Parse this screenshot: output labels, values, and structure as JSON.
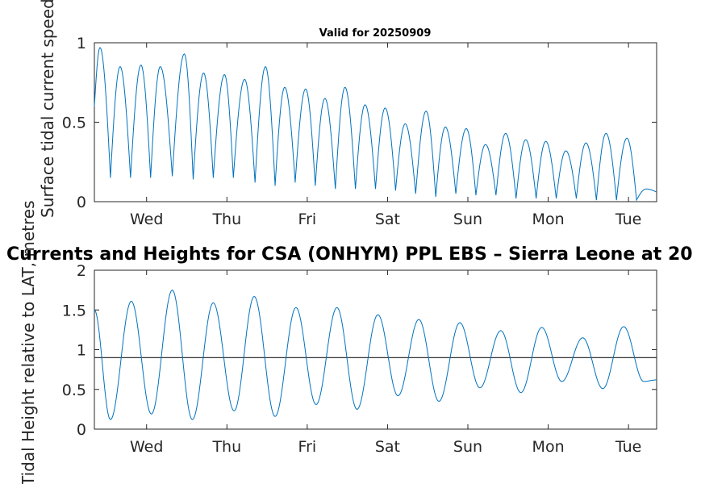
{
  "chart_data": [
    {
      "type": "line",
      "title": "Valid for 20250909",
      "ylabel": "Surface tidal current speed, knots",
      "ylim": [
        0,
        1
      ],
      "y_ticks": [
        "0",
        "0.5",
        "1"
      ],
      "x_ticks": [
        "Wed",
        "Thu",
        "Fri",
        "Sat",
        "Sun",
        "Mon",
        "Tue"
      ],
      "x_tick_days": [
        1,
        2,
        3,
        4,
        5,
        6,
        7
      ],
      "xlim_days": [
        0.35,
        7.35
      ],
      "grid": false,
      "series": [
        {
          "color": "#0072bd",
          "peak_days": [
            0.42,
            0.67,
            0.93,
            1.17,
            1.47,
            1.71,
            1.97,
            2.22,
            2.48,
            2.72,
            2.98,
            3.22,
            3.47,
            3.72,
            3.97,
            4.22,
            4.48,
            4.72,
            4.98,
            5.22,
            5.47,
            5.72,
            5.97,
            6.22,
            6.47,
            6.72,
            6.98,
            7.22
          ],
          "peak_values": [
            0.97,
            0.85,
            0.86,
            0.85,
            0.93,
            0.81,
            0.8,
            0.77,
            0.85,
            0.72,
            0.71,
            0.65,
            0.72,
            0.61,
            0.59,
            0.49,
            0.57,
            0.47,
            0.46,
            0.36,
            0.43,
            0.39,
            0.38,
            0.32,
            0.37,
            0.43,
            0.4,
            0.08
          ],
          "trough_days": [
            0.35,
            0.55,
            0.8,
            1.05,
            1.32,
            1.58,
            1.83,
            2.08,
            2.35,
            2.6,
            2.85,
            3.1,
            3.35,
            3.6,
            3.85,
            4.1,
            4.35,
            4.6,
            4.85,
            5.1,
            5.35,
            5.6,
            5.85,
            6.1,
            6.35,
            6.6,
            6.85,
            7.1,
            7.35
          ],
          "trough_values": [
            0.6,
            0.15,
            0.15,
            0.15,
            0.16,
            0.14,
            0.15,
            0.15,
            0.12,
            0.1,
            0.12,
            0.1,
            0.08,
            0.08,
            0.08,
            0.07,
            0.05,
            0.03,
            0.05,
            0.04,
            0.04,
            0.02,
            0.02,
            0.02,
            0.02,
            0.01,
            0.01,
            0.01,
            0.06
          ]
        }
      ]
    },
    {
      "type": "line",
      "title": "Currents and Heights for CSA (ONHYM) PPL EBS  – Sierra Leone at 20",
      "ylabel": "Tidal Height relative to LAT, metres",
      "ylim": [
        0,
        2
      ],
      "y_ticks": [
        "0",
        "0.5",
        "1",
        "1.5",
        "2"
      ],
      "x_ticks": [
        "Wed",
        "Thu",
        "Fri",
        "Sat",
        "Sun",
        "Mon",
        "Tue"
      ],
      "x_tick_days": [
        1,
        2,
        3,
        4,
        5,
        6,
        7
      ],
      "xlim_days": [
        0.35,
        7.35
      ],
      "grid": false,
      "reference_line": {
        "value": 0.9,
        "color": "#333333"
      },
      "series": [
        {
          "color": "#0072bd",
          "extrema_days": [
            0.35,
            0.55,
            0.81,
            1.06,
            1.32,
            1.57,
            1.83,
            2.09,
            2.34,
            2.6,
            2.86,
            3.11,
            3.37,
            3.62,
            3.88,
            4.13,
            4.39,
            4.64,
            4.9,
            5.15,
            5.41,
            5.66,
            5.92,
            6.17,
            6.43,
            6.68,
            6.94,
            7.19,
            7.35
          ],
          "extrema_values": [
            1.5,
            0.12,
            1.61,
            0.19,
            1.75,
            0.12,
            1.59,
            0.23,
            1.67,
            0.16,
            1.53,
            0.31,
            1.53,
            0.25,
            1.44,
            0.42,
            1.38,
            0.35,
            1.34,
            0.52,
            1.24,
            0.46,
            1.28,
            0.6,
            1.15,
            0.51,
            1.29,
            0.6,
            0.62
          ]
        }
      ]
    }
  ]
}
